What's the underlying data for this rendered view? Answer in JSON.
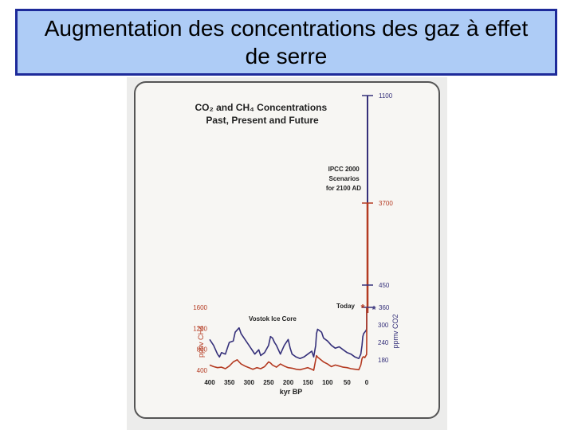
{
  "slide_title": "Augmentation des concentrations des gaz à effet de serre",
  "chart_data": {
    "type": "line",
    "title": "CO2 and CH4 Concentrations Past, Present and Future",
    "annotations": {
      "scenario": [
        "IPCC 2000",
        "Scenarios",
        "for 2100 AD"
      ],
      "today": "Today",
      "core": "Vostok Ice Core"
    },
    "xlabel": "kyr BP",
    "x_ticks": [
      400,
      350,
      300,
      250,
      200,
      150,
      100,
      50,
      0
    ],
    "xlim": [
      400,
      0
    ],
    "left_axis": {
      "label": "ppbv CH4",
      "ticks": [
        400,
        800,
        1200,
        1600
      ]
    },
    "right_axis": {
      "label": "ppmv CO2",
      "ticks": [
        180,
        240,
        300,
        360,
        450
      ]
    },
    "projection_ticks": [
      {
        "label": "1100",
        "series": "CO2"
      },
      {
        "label": "3700",
        "series": "CH4"
      },
      {
        "label": "450",
        "series": "CO2"
      },
      {
        "label": "360",
        "series": "CO2"
      }
    ],
    "colors": {
      "CO2": "#35307a",
      "CH4": "#b43a21",
      "frame": "#555555",
      "title_box_bg": "#aeccf6",
      "title_box_border": "#1d2a9a"
    },
    "series": [
      {
        "key": "CO2",
        "x": [
          400,
          390,
          380,
          375,
          370,
          360,
          350,
          340,
          335,
          325,
          320,
          310,
          300,
          290,
          285,
          275,
          270,
          260,
          250,
          245,
          240,
          235,
          230,
          225,
          220,
          210,
          200,
          195,
          190,
          185,
          180,
          170,
          160,
          150,
          140,
          135,
          130,
          128,
          125,
          120,
          115,
          110,
          100,
          90,
          80,
          70,
          60,
          50,
          40,
          30,
          20,
          15,
          12,
          10,
          8,
          5,
          2,
          0.5,
          0.2,
          0.1,
          0.05
        ],
        "y": [
          250,
          230,
          200,
          190,
          205,
          200,
          240,
          245,
          275,
          290,
          270,
          250,
          230,
          210,
          200,
          215,
          195,
          205,
          230,
          260,
          255,
          240,
          230,
          215,
          200,
          230,
          250,
          220,
          200,
          195,
          190,
          185,
          190,
          200,
          210,
          190,
          230,
          270,
          285,
          280,
          275,
          255,
          245,
          230,
          220,
          225,
          215,
          205,
          200,
          190,
          185,
          200,
          230,
          260,
          270,
          275,
          280,
          285,
          290,
          315,
          360
        ]
      },
      {
        "key": "CH4",
        "x": [
          400,
          390,
          380,
          370,
          360,
          350,
          340,
          330,
          325,
          320,
          310,
          300,
          290,
          280,
          270,
          260,
          250,
          245,
          240,
          230,
          220,
          210,
          200,
          190,
          180,
          170,
          160,
          150,
          140,
          135,
          130,
          128,
          125,
          120,
          110,
          100,
          90,
          80,
          70,
          60,
          50,
          40,
          30,
          20,
          15,
          12,
          10,
          8,
          5,
          2,
          0.5,
          0.2,
          0.1,
          0.05
        ],
        "y": [
          500,
          470,
          450,
          460,
          430,
          480,
          560,
          600,
          560,
          520,
          480,
          450,
          420,
          450,
          430,
          470,
          560,
          540,
          500,
          460,
          520,
          480,
          450,
          440,
          420,
          410,
          430,
          450,
          420,
          400,
          600,
          680,
          650,
          620,
          560,
          520,
          470,
          500,
          480,
          460,
          450,
          430,
          420,
          410,
          500,
          620,
          650,
          660,
          640,
          680,
          700,
          760,
          1000,
          1600
        ]
      }
    ]
  }
}
